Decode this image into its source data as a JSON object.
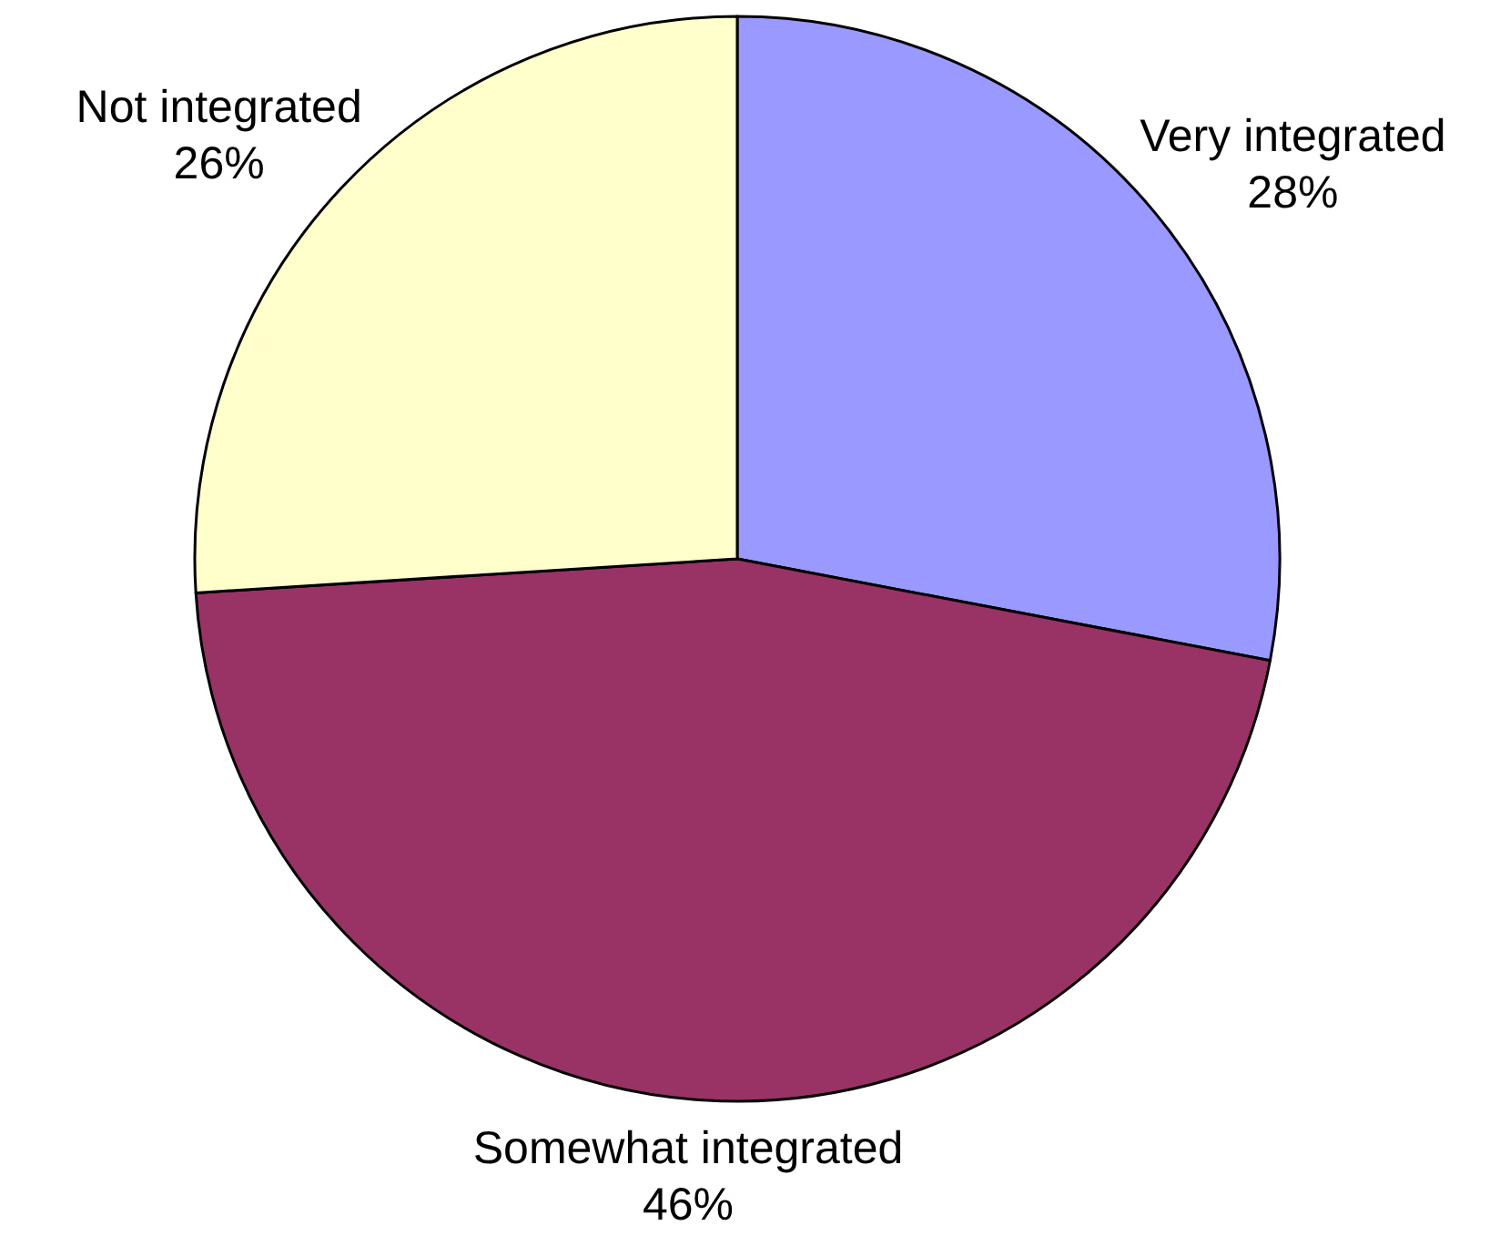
{
  "chart_data": {
    "type": "pie",
    "categories": [
      "Very integrated",
      "Somewhat integrated",
      "Not integrated"
    ],
    "values": [
      28,
      46,
      26
    ],
    "colors": [
      "#9999ff",
      "#993366",
      "#ffffcc"
    ],
    "value_labels": [
      "28%",
      "46%",
      "26%"
    ]
  }
}
